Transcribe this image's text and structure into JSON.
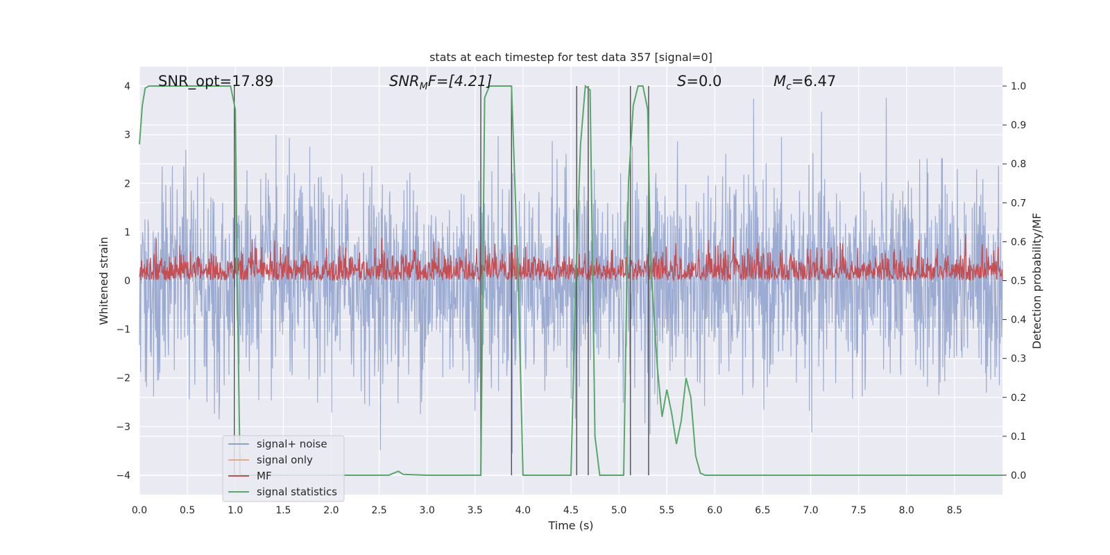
{
  "chart_data": {
    "type": "line",
    "title": "stats at each timestep for test data 357 [signal=0]",
    "xlabel": "Time (s)",
    "ylabel": "Whitened strain",
    "ylabel_right": "Detection probability/MF",
    "xlim": [
      0,
      9
    ],
    "ylim": [
      -4.4,
      4.4
    ],
    "ylim_right": [
      -0.05,
      1.05
    ],
    "x_ticks": [
      0.0,
      0.5,
      1.0,
      1.5,
      2.0,
      2.5,
      3.0,
      3.5,
      4.0,
      4.5,
      5.0,
      5.5,
      6.0,
      6.5,
      7.0,
      7.5,
      8.0,
      8.5
    ],
    "x_tick_labels": [
      "0.0",
      "0.5",
      "1.0",
      "1.5",
      "2.0",
      "2.5",
      "3.0",
      "3.5",
      "4.0",
      "4.5",
      "5.0",
      "5.5",
      "6.0",
      "6.5",
      "7.0",
      "7.5",
      "8.0",
      "8.5"
    ],
    "y_ticks": [
      -4,
      -3,
      -2,
      -1,
      0,
      1,
      2,
      3,
      4
    ],
    "y_tick_labels": [
      "−4",
      "−3",
      "−2",
      "−1",
      "0",
      "1",
      "2",
      "3",
      "4"
    ],
    "y_ticks_right": [
      0.0,
      0.1,
      0.2,
      0.3,
      0.4,
      0.5,
      0.6,
      0.7,
      0.8,
      0.9,
      1.0
    ],
    "y_tick_labels_right": [
      "0.0",
      "0.1",
      "0.2",
      "0.3",
      "0.4",
      "0.5",
      "0.6",
      "0.7",
      "0.8",
      "0.9",
      "1.0"
    ],
    "grid": true,
    "legend_position": "lower-left",
    "annotations": {
      "snr_opt": "SNR_opt=17.89",
      "snr_mf_label": "SNR",
      "snr_mf_sub": "M",
      "snr_mf_rest": "F=[4.21]",
      "s_label": "S",
      "s_rest": "=0.0",
      "mc_label": "M",
      "mc_sub": "c",
      "mc_rest": "=6.47"
    },
    "series": [
      {
        "name": "signal+ noise",
        "color": "#8da0cb",
        "axis": "left",
        "description_values": "whitened noise strain, approx. range -4 to 4"
      },
      {
        "name": "signal only",
        "color": "#e8a98a",
        "axis": "left",
        "values": []
      },
      {
        "name": "MF",
        "color": "#c44e52",
        "axis": "right",
        "range": [
          0.5,
          0.62
        ]
      },
      {
        "name": "signal statistics",
        "color": "#55a868",
        "axis": "right",
        "x": [
          0.0,
          0.03,
          0.06,
          0.1,
          0.2,
          0.5,
          0.8,
          0.95,
          1.0,
          1.02,
          1.05,
          1.2,
          1.5,
          2.0,
          2.5,
          2.6,
          2.65,
          2.7,
          2.75,
          3.0,
          3.5,
          3.56,
          3.6,
          3.65,
          3.7,
          3.8,
          3.88,
          3.95,
          4.0,
          4.2,
          4.5,
          4.55,
          4.6,
          4.65,
          4.7,
          4.75,
          4.8,
          4.85,
          5.0,
          5.05,
          5.1,
          5.15,
          5.2,
          5.25,
          5.3,
          5.33,
          5.4,
          5.45,
          5.5,
          5.55,
          5.6,
          5.65,
          5.7,
          5.75,
          5.8,
          5.85,
          5.9,
          6.0,
          6.5,
          7.0,
          8.0,
          9.0
        ],
        "values": [
          0.85,
          0.95,
          0.995,
          1.0,
          1.0,
          1.0,
          1.0,
          1.0,
          0.94,
          0.5,
          0.0,
          0.0,
          0.0,
          0.0,
          0.0,
          0.0,
          0.005,
          0.01,
          0.002,
          0.0,
          0.0,
          0.0,
          0.97,
          1.0,
          1.0,
          1.0,
          1.0,
          0.5,
          0.0,
          0.0,
          0.0,
          0.5,
          0.85,
          1.0,
          0.99,
          0.1,
          0.0,
          0.0,
          0.0,
          0.0,
          0.75,
          0.95,
          1.0,
          1.0,
          0.94,
          0.55,
          0.28,
          0.15,
          0.22,
          0.16,
          0.08,
          0.14,
          0.25,
          0.2,
          0.05,
          0.005,
          0.0,
          0.0,
          0.0,
          0.0,
          0.0,
          0.0
        ]
      }
    ],
    "vertical_lines_x": [
      0.99,
      3.56,
      3.88,
      4.56,
      4.68,
      5.12,
      5.31
    ],
    "legend": [
      "signal+ noise",
      "signal only",
      "MF",
      "signal statistics"
    ]
  }
}
